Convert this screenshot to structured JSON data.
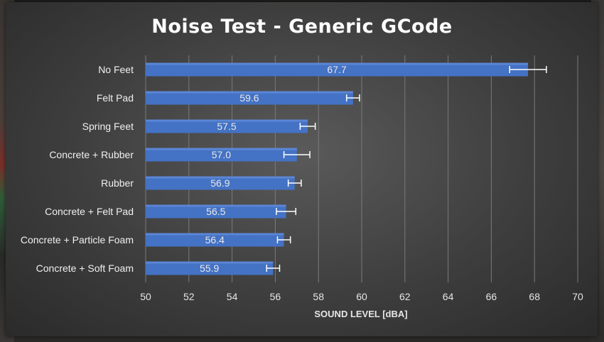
{
  "colors": {
    "bar": "#4472c4",
    "bar_highlight": "#5b86d6",
    "gridline": "#7a7a7a",
    "error_bar": "#ffffff",
    "text": "#f0f0f0"
  },
  "chart_data": {
    "type": "bar",
    "orientation": "horizontal",
    "title": "Noise Test - Generic GCode",
    "xlabel": "SOUND LEVEL [dBA]",
    "ylabel": "",
    "xlim": [
      50,
      70
    ],
    "xticks": [
      50,
      52,
      54,
      56,
      58,
      60,
      62,
      64,
      66,
      68,
      70
    ],
    "grid": true,
    "legend": "none",
    "categories": [
      "No Feet",
      "Felt Pad",
      "Spring Feet",
      "Concrete + Rubber",
      "Rubber",
      "Concrete + Felt Pad",
      "Concrete + Particle Foam",
      "Concrete + Soft Foam"
    ],
    "values": [
      67.7,
      59.6,
      57.5,
      57.0,
      56.9,
      56.5,
      56.4,
      55.9
    ],
    "value_labels": [
      "67.7",
      "59.6",
      "57.5",
      "57.0",
      "56.9",
      "56.5",
      "56.4",
      "55.9"
    ],
    "errors": [
      0.85,
      0.3,
      0.35,
      0.6,
      0.3,
      0.45,
      0.3,
      0.3
    ]
  }
}
